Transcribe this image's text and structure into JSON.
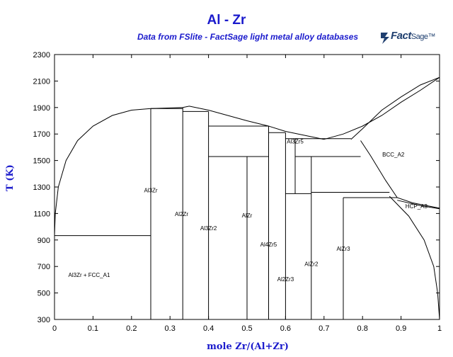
{
  "chart_data": {
    "type": "line",
    "title": "Al - Zr",
    "subtitle": "Data from FSlite - FactSage light metal alloy databases",
    "logo": {
      "name": "Fact",
      "suffix": "Sage",
      "mark": "™"
    },
    "xlabel": "mole Zr/(Al+Zr)",
    "ylabel": "T (K)",
    "xlim": [
      0,
      1
    ],
    "ylim": [
      300,
      2300
    ],
    "xticks": [
      "0",
      "0.1",
      "0.2",
      "0.3",
      "0.4",
      "0.5",
      "0.6",
      "0.7",
      "0.8",
      "0.9",
      "1"
    ],
    "yticks": [
      "300",
      "500",
      "700",
      "900",
      "1100",
      "1300",
      "1500",
      "1700",
      "1900",
      "2100",
      "2300"
    ],
    "grid": false,
    "phase_labels": [
      {
        "text": "Al3Zr + FCC_A1",
        "x": 0.09,
        "y": 620
      },
      {
        "text": "Al3Zr",
        "x": 0.25,
        "y": 1260
      },
      {
        "text": "Al2Zr",
        "x": 0.33,
        "y": 1080
      },
      {
        "text": "Al3Zr2",
        "x": 0.4,
        "y": 975
      },
      {
        "text": "AlZr",
        "x": 0.5,
        "y": 1070
      },
      {
        "text": "Al4Zr5",
        "x": 0.556,
        "y": 850
      },
      {
        "text": "Al3Zr5",
        "x": 0.625,
        "y": 1630
      },
      {
        "text": "Al2Zr3",
        "x": 0.6,
        "y": 590
      },
      {
        "text": "AlZr2",
        "x": 0.667,
        "y": 705
      },
      {
        "text": "AlZr3",
        "x": 0.75,
        "y": 820
      },
      {
        "text": "BCC_A2",
        "x": 0.88,
        "y": 1530
      },
      {
        "text": "HCP_A3",
        "x": 0.94,
        "y": 1140
      }
    ],
    "series": [
      {
        "values": [
          [
            0.0,
            933
          ],
          [
            0.002,
            1100
          ],
          [
            0.01,
            1300
          ],
          [
            0.03,
            1500
          ],
          [
            0.06,
            1650
          ],
          [
            0.1,
            1760
          ],
          [
            0.15,
            1840
          ],
          [
            0.2,
            1880
          ],
          [
            0.25,
            1892
          ]
        ]
      },
      {
        "values": [
          [
            0.25,
            1892
          ],
          [
            0.333,
            1900
          ],
          [
            0.35,
            1910
          ],
          [
            0.4,
            1880
          ],
          [
            0.5,
            1800
          ],
          [
            0.556,
            1760
          ],
          [
            0.6,
            1720
          ],
          [
            0.7,
            1660
          ]
        ]
      },
      {
        "values": [
          [
            0.7,
            1660
          ],
          [
            0.75,
            1700
          ],
          [
            0.8,
            1760
          ],
          [
            0.85,
            1840
          ],
          [
            0.9,
            1940
          ],
          [
            0.95,
            2030
          ],
          [
            1.0,
            2128
          ]
        ]
      },
      {
        "values": [
          [
            0.77,
            1660
          ],
          [
            0.8,
            1740
          ],
          [
            0.85,
            1880
          ],
          [
            0.9,
            1980
          ],
          [
            0.95,
            2070
          ],
          [
            1.0,
            2128
          ]
        ]
      },
      {
        "values": [
          [
            0.795,
            1650
          ],
          [
            0.82,
            1540
          ],
          [
            0.86,
            1350
          ],
          [
            0.89,
            1220
          ],
          [
            0.93,
            1180
          ],
          [
            1.0,
            1140
          ]
        ]
      },
      {
        "values": [
          [
            0.89,
            1200
          ],
          [
            0.95,
            1160
          ],
          [
            1.0,
            1136
          ]
        ]
      },
      {
        "values": [
          [
            0.87,
            1230
          ],
          [
            0.92,
            1080
          ],
          [
            0.96,
            900
          ],
          [
            0.985,
            700
          ],
          [
            0.995,
            500
          ],
          [
            1.0,
            300
          ]
        ]
      },
      {
        "values": [
          [
            0.0,
            933
          ],
          [
            0.25,
            933
          ]
        ]
      },
      {
        "values": [
          [
            0.25,
            300
          ],
          [
            0.25,
            1892
          ]
        ]
      },
      {
        "values": [
          [
            0.333,
            300
          ],
          [
            0.333,
            1900
          ]
        ]
      },
      {
        "values": [
          [
            0.4,
            300
          ],
          [
            0.4,
            1870
          ]
        ]
      },
      {
        "values": [
          [
            0.5,
            300
          ],
          [
            0.5,
            1530
          ]
        ]
      },
      {
        "values": [
          [
            0.556,
            300
          ],
          [
            0.556,
            1760
          ]
        ]
      },
      {
        "values": [
          [
            0.6,
            300
          ],
          [
            0.6,
            1710
          ]
        ]
      },
      {
        "values": [
          [
            0.625,
            1250
          ],
          [
            0.625,
            1665
          ]
        ]
      },
      {
        "values": [
          [
            0.667,
            300
          ],
          [
            0.667,
            1530
          ]
        ]
      },
      {
        "values": [
          [
            0.75,
            300
          ],
          [
            0.75,
            1220
          ]
        ]
      },
      {
        "values": [
          [
            0.25,
            1892
          ],
          [
            0.333,
            1892
          ]
        ]
      },
      {
        "values": [
          [
            0.333,
            1870
          ],
          [
            0.4,
            1870
          ]
        ]
      },
      {
        "values": [
          [
            0.4,
            1760
          ],
          [
            0.556,
            1760
          ]
        ]
      },
      {
        "values": [
          [
            0.4,
            1530
          ],
          [
            0.556,
            1530
          ]
        ]
      },
      {
        "values": [
          [
            0.556,
            1710
          ],
          [
            0.6,
            1710
          ]
        ]
      },
      {
        "values": [
          [
            0.6,
            1665
          ],
          [
            0.77,
            1665
          ]
        ]
      },
      {
        "values": [
          [
            0.625,
            1530
          ],
          [
            0.795,
            1530
          ]
        ]
      },
      {
        "values": [
          [
            0.6,
            1250
          ],
          [
            0.667,
            1250
          ]
        ]
      },
      {
        "values": [
          [
            0.667,
            1260
          ],
          [
            0.87,
            1260
          ]
        ]
      },
      {
        "values": [
          [
            0.75,
            1220
          ],
          [
            0.89,
            1220
          ]
        ]
      }
    ]
  }
}
